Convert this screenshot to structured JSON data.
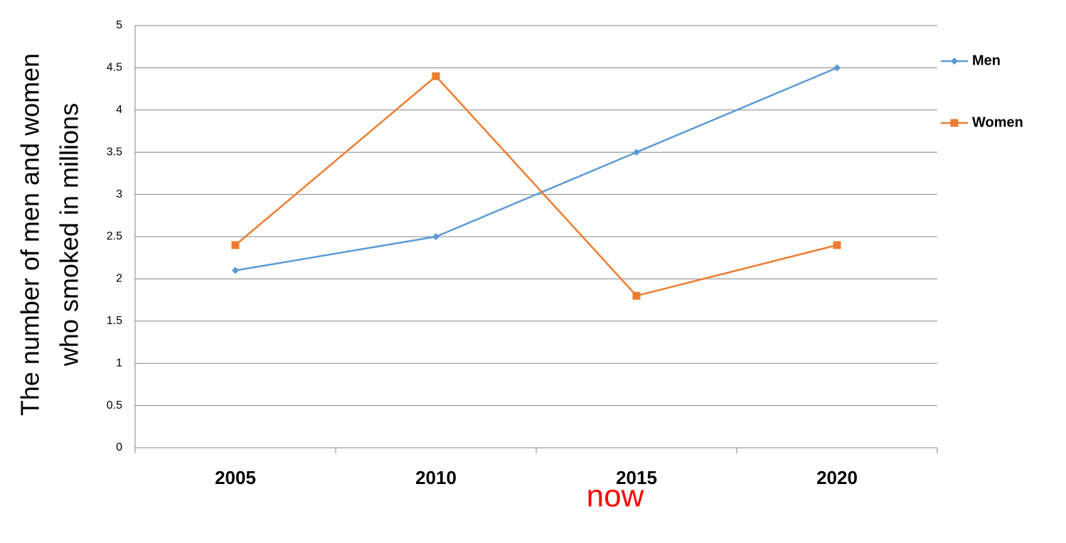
{
  "chart_data": {
    "type": "line",
    "y_label": [
      "The number of men and women",
      "who smoked in millions"
    ],
    "annotation": "now",
    "categories": [
      "2005",
      "2010",
      "2015",
      "2020"
    ],
    "series": [
      {
        "name": "Men",
        "color": "#5b9bd5",
        "marker": "diamond",
        "values": [
          2.1,
          2.5,
          3.5,
          4.5
        ]
      },
      {
        "name": "Women",
        "color": "#ed7d31",
        "marker": "square",
        "values": [
          2.4,
          4.4,
          1.8,
          2.4
        ]
      }
    ],
    "ylim": [
      0,
      5
    ],
    "yticks": [
      0,
      0.5,
      1,
      1.5,
      2,
      2.5,
      3,
      3.5,
      4,
      4.5,
      5
    ],
    "grid": true,
    "legend": "right",
    "annotation_color": "#ff0000"
  }
}
